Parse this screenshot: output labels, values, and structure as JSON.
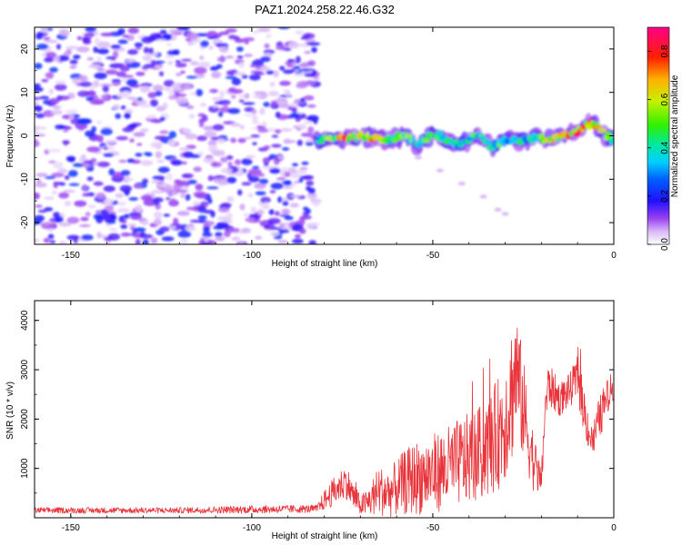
{
  "title": "PAZ1.2024.258.22.46.G32",
  "colors": {
    "snr_line": "#e8343a",
    "axis": "#000000",
    "colormap": [
      "#ffffff",
      "#b060f0",
      "#5a18e8",
      "#0018ff",
      "#00c8ff",
      "#00e080",
      "#40f000",
      "#e8f000",
      "#ff7800",
      "#ff0000",
      "#ff0080"
    ]
  },
  "chart_data": [
    {
      "type": "heatmap",
      "xlabel": "Height of straight line (km)",
      "ylabel": "Frequency (Hz)",
      "xlim": [
        -160,
        0
      ],
      "ylim": [
        -25,
        25
      ],
      "x_ticks": [
        "-150",
        "-100",
        "-50",
        "0"
      ],
      "y_ticks": [
        "20",
        "10",
        "0",
        "-10",
        "-20"
      ],
      "colorbar": {
        "label": "Normalized spectral amplitude",
        "range": [
          0,
          0.9
        ],
        "ticks": [
          "0.0",
          "0.2",
          "0.4",
          "0.6",
          "0.8"
        ]
      },
      "noise_region_x": [
        -160,
        -82
      ],
      "ridge": {
        "x": [
          -82,
          -78,
          -74,
          -70,
          -66,
          -62,
          -58,
          -54,
          -50,
          -46,
          -42,
          -38,
          -34,
          -30,
          -26,
          -22,
          -18,
          -14,
          -10,
          -6,
          -2,
          0
        ],
        "freq": [
          -1,
          -0.5,
          -0.5,
          0,
          -0.5,
          -1,
          0,
          -2,
          0.5,
          -1,
          -2,
          0.5,
          -2.5,
          -1,
          -1,
          -0.5,
          -1,
          0,
          1,
          3,
          0,
          -1
        ],
        "amplitude": [
          0.35,
          0.6,
          0.8,
          0.6,
          0.75,
          0.5,
          0.55,
          0.45,
          0.5,
          0.45,
          0.4,
          0.5,
          0.5,
          0.45,
          0.4,
          0.45,
          0.6,
          0.75,
          0.8,
          0.7,
          0.55,
          0.4
        ]
      },
      "scatter_tail": {
        "x": [
          -54,
          -48,
          -42,
          -36,
          -32,
          -30
        ],
        "freq": [
          -5,
          -8,
          -11,
          -14,
          -17,
          -18
        ]
      }
    },
    {
      "type": "line",
      "xlabel": "Height of straight line (km)",
      "ylabel": "SNR (10 * v/v)",
      "xlim": [
        -160,
        0
      ],
      "ylim": [
        0,
        4400
      ],
      "x_ticks": [
        "-150",
        "-100",
        "-50",
        "0"
      ],
      "y_ticks": [
        "1000",
        "2000",
        "3000",
        "4000"
      ],
      "envelope": {
        "x": [
          -160,
          -120,
          -100,
          -82,
          -80,
          -77,
          -74,
          -72,
          -70,
          -68,
          -65,
          -62,
          -58,
          -55,
          -50,
          -46,
          -42,
          -38,
          -35,
          -32,
          -30,
          -28,
          -27,
          -26,
          -24,
          -22,
          -20,
          -19,
          -18,
          -15,
          -12,
          -10,
          -8,
          -6,
          -4,
          -2,
          0
        ],
        "center": [
          150,
          150,
          170,
          180,
          350,
          550,
          750,
          450,
          250,
          300,
          550,
          500,
          700,
          800,
          900,
          1000,
          1150,
          1250,
          1400,
          1700,
          2000,
          2600,
          3000,
          2600,
          1800,
          1100,
          700,
          2200,
          2700,
          2400,
          2600,
          2850,
          2100,
          1500,
          2000,
          2400,
          2700
        ],
        "amplitude": [
          60,
          60,
          80,
          80,
          200,
          300,
          350,
          300,
          200,
          300,
          500,
          500,
          650,
          750,
          800,
          850,
          900,
          950,
          1000,
          1150,
          1250,
          1450,
          1400,
          1200,
          900,
          600,
          300,
          500,
          450,
          350,
          350,
          450,
          500,
          350,
          450,
          400,
          300
        ]
      }
    }
  ]
}
